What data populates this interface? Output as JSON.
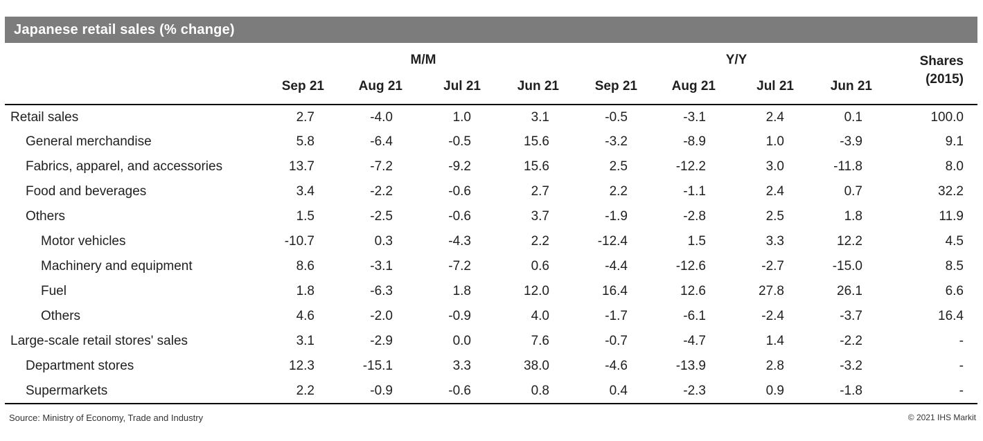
{
  "title_bar": {
    "title": "Japanese retail sales (% change)"
  },
  "colors": {
    "title_bar_bg": "#7c7c7c",
    "title_bar_text": "#ffffff",
    "rule": "#000000",
    "body_text": "#1f1f1f"
  },
  "chart_data": {
    "type": "table",
    "title": "Japanese retail sales (% change)",
    "column_groups": [
      {
        "label": "M/M",
        "span": 4
      },
      {
        "label": "Y/Y",
        "span": 4
      }
    ],
    "columns": [
      "Sep 21",
      "Aug 21",
      "Jul 21",
      "Jun 21",
      "Sep 21",
      "Aug 21",
      "Jul 21",
      "Jun 21"
    ],
    "shares_header": {
      "line1": "Shares",
      "line2": "(2015)"
    },
    "missing_value": "-",
    "rows": [
      {
        "label": "Retail sales",
        "indent": 0,
        "values": [
          "2.7",
          "-4.0",
          "1.0",
          "3.1",
          "-0.5",
          "-3.1",
          "2.4",
          "0.1",
          "100.0"
        ]
      },
      {
        "label": "General merchandise",
        "indent": 1,
        "values": [
          "5.8",
          "-6.4",
          "-0.5",
          "15.6",
          "-3.2",
          "-8.9",
          "1.0",
          "-3.9",
          "9.1"
        ]
      },
      {
        "label": "Fabrics, apparel, and accessories",
        "indent": 1,
        "values": [
          "13.7",
          "-7.2",
          "-9.2",
          "15.6",
          "2.5",
          "-12.2",
          "3.0",
          "-11.8",
          "8.0"
        ]
      },
      {
        "label": "Food and beverages",
        "indent": 1,
        "values": [
          "3.4",
          "-2.2",
          "-0.6",
          "2.7",
          "2.2",
          "-1.1",
          "2.4",
          "0.7",
          "32.2"
        ]
      },
      {
        "label": "Others",
        "indent": 1,
        "values": [
          "1.5",
          "-2.5",
          "-0.6",
          "3.7",
          "-1.9",
          "-2.8",
          "2.5",
          "1.8",
          "11.9"
        ]
      },
      {
        "label": "Motor vehicles",
        "indent": 2,
        "values": [
          "-10.7",
          "0.3",
          "-4.3",
          "2.2",
          "-12.4",
          "1.5",
          "3.3",
          "12.2",
          "4.5"
        ]
      },
      {
        "label": "Machinery and equipment",
        "indent": 2,
        "values": [
          "8.6",
          "-3.1",
          "-7.2",
          "0.6",
          "-4.4",
          "-12.6",
          "-2.7",
          "-15.0",
          "8.5"
        ]
      },
      {
        "label": "Fuel",
        "indent": 2,
        "values": [
          "1.8",
          "-6.3",
          "1.8",
          "12.0",
          "16.4",
          "12.6",
          "27.8",
          "26.1",
          "6.6"
        ]
      },
      {
        "label": "Others",
        "indent": 2,
        "values": [
          "4.6",
          "-2.0",
          "-0.9",
          "4.0",
          "-1.7",
          "-6.1",
          "-2.4",
          "-3.7",
          "16.4"
        ]
      },
      {
        "label": "Large-scale retail stores' sales",
        "indent": 0,
        "values": [
          "3.1",
          "-2.9",
          "0.0",
          "7.6",
          "-0.7",
          "-4.7",
          "1.4",
          "-2.2",
          "-"
        ]
      },
      {
        "label": "Department stores",
        "indent": 1,
        "values": [
          "12.3",
          "-15.1",
          "3.3",
          "38.0",
          "-4.6",
          "-13.9",
          "2.8",
          "-3.2",
          "-"
        ]
      },
      {
        "label": "Supermarkets",
        "indent": 1,
        "values": [
          "2.2",
          "-0.9",
          "-0.6",
          "0.8",
          "0.4",
          "-2.3",
          "0.9",
          "-1.8",
          "-"
        ]
      }
    ]
  },
  "footer": {
    "source": "Source: Ministry of Economy, Trade and Industry",
    "copyright": "© 2021 IHS Markit"
  }
}
